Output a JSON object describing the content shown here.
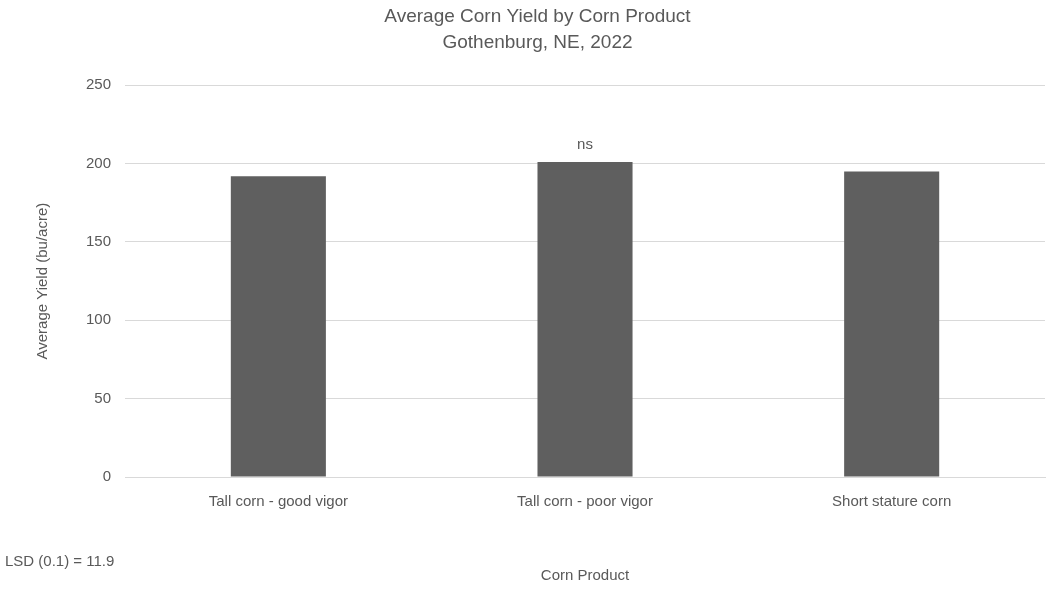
{
  "chart_data": {
    "type": "bar",
    "title": "Average Corn Yield by Corn Product",
    "subtitle": "Gothenburg, NE, 2022",
    "x_label": "Corn Product",
    "y_label": "Average Yield (bu/acre)",
    "categories": [
      "Tall corn - good vigor",
      "Tall corn - poor vigor",
      "Short stature corn"
    ],
    "values": [
      192,
      201,
      195
    ],
    "color": "#5f5f5f",
    "ylim": [
      0,
      250
    ],
    "yticks": [
      0,
      50,
      100,
      150,
      200,
      250
    ],
    "grid": true,
    "annotations": [
      {
        "text": "ns",
        "category": "Tall corn - poor vigor"
      }
    ],
    "footnote": "LSD (0.1) = 11.9"
  }
}
